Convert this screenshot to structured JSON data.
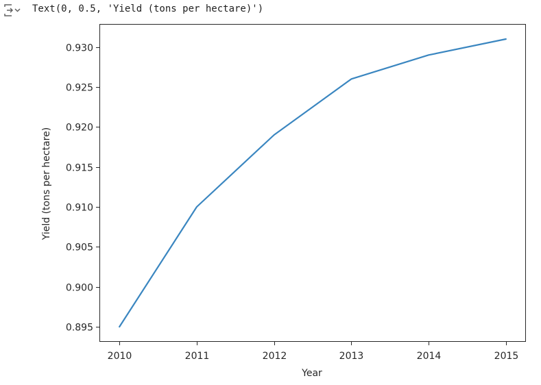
{
  "cell_output": {
    "text": "Text(0, 0.5, 'Yield (tons per hectare)')",
    "icon": "output-collapse-icon"
  },
  "chart_data": {
    "type": "line",
    "title": "",
    "xlabel": "Year",
    "ylabel": "Yield (tons per hectare)",
    "x": [
      2010,
      2011,
      2012,
      2013,
      2014,
      2015
    ],
    "series": [
      {
        "values": [
          0.895,
          0.91,
          0.919,
          0.926,
          0.929,
          0.931
        ],
        "color": "#3a86c0"
      }
    ],
    "xticks": [
      "2010",
      "2011",
      "2012",
      "2013",
      "2014",
      "2015"
    ],
    "yticks": [
      "0.895",
      "0.900",
      "0.905",
      "0.910",
      "0.915",
      "0.920",
      "0.925",
      "0.930"
    ],
    "xlim": [
      2009.75,
      2015.25
    ],
    "ylim": [
      0.8932,
      0.9328
    ],
    "grid": false,
    "legend": "none"
  }
}
